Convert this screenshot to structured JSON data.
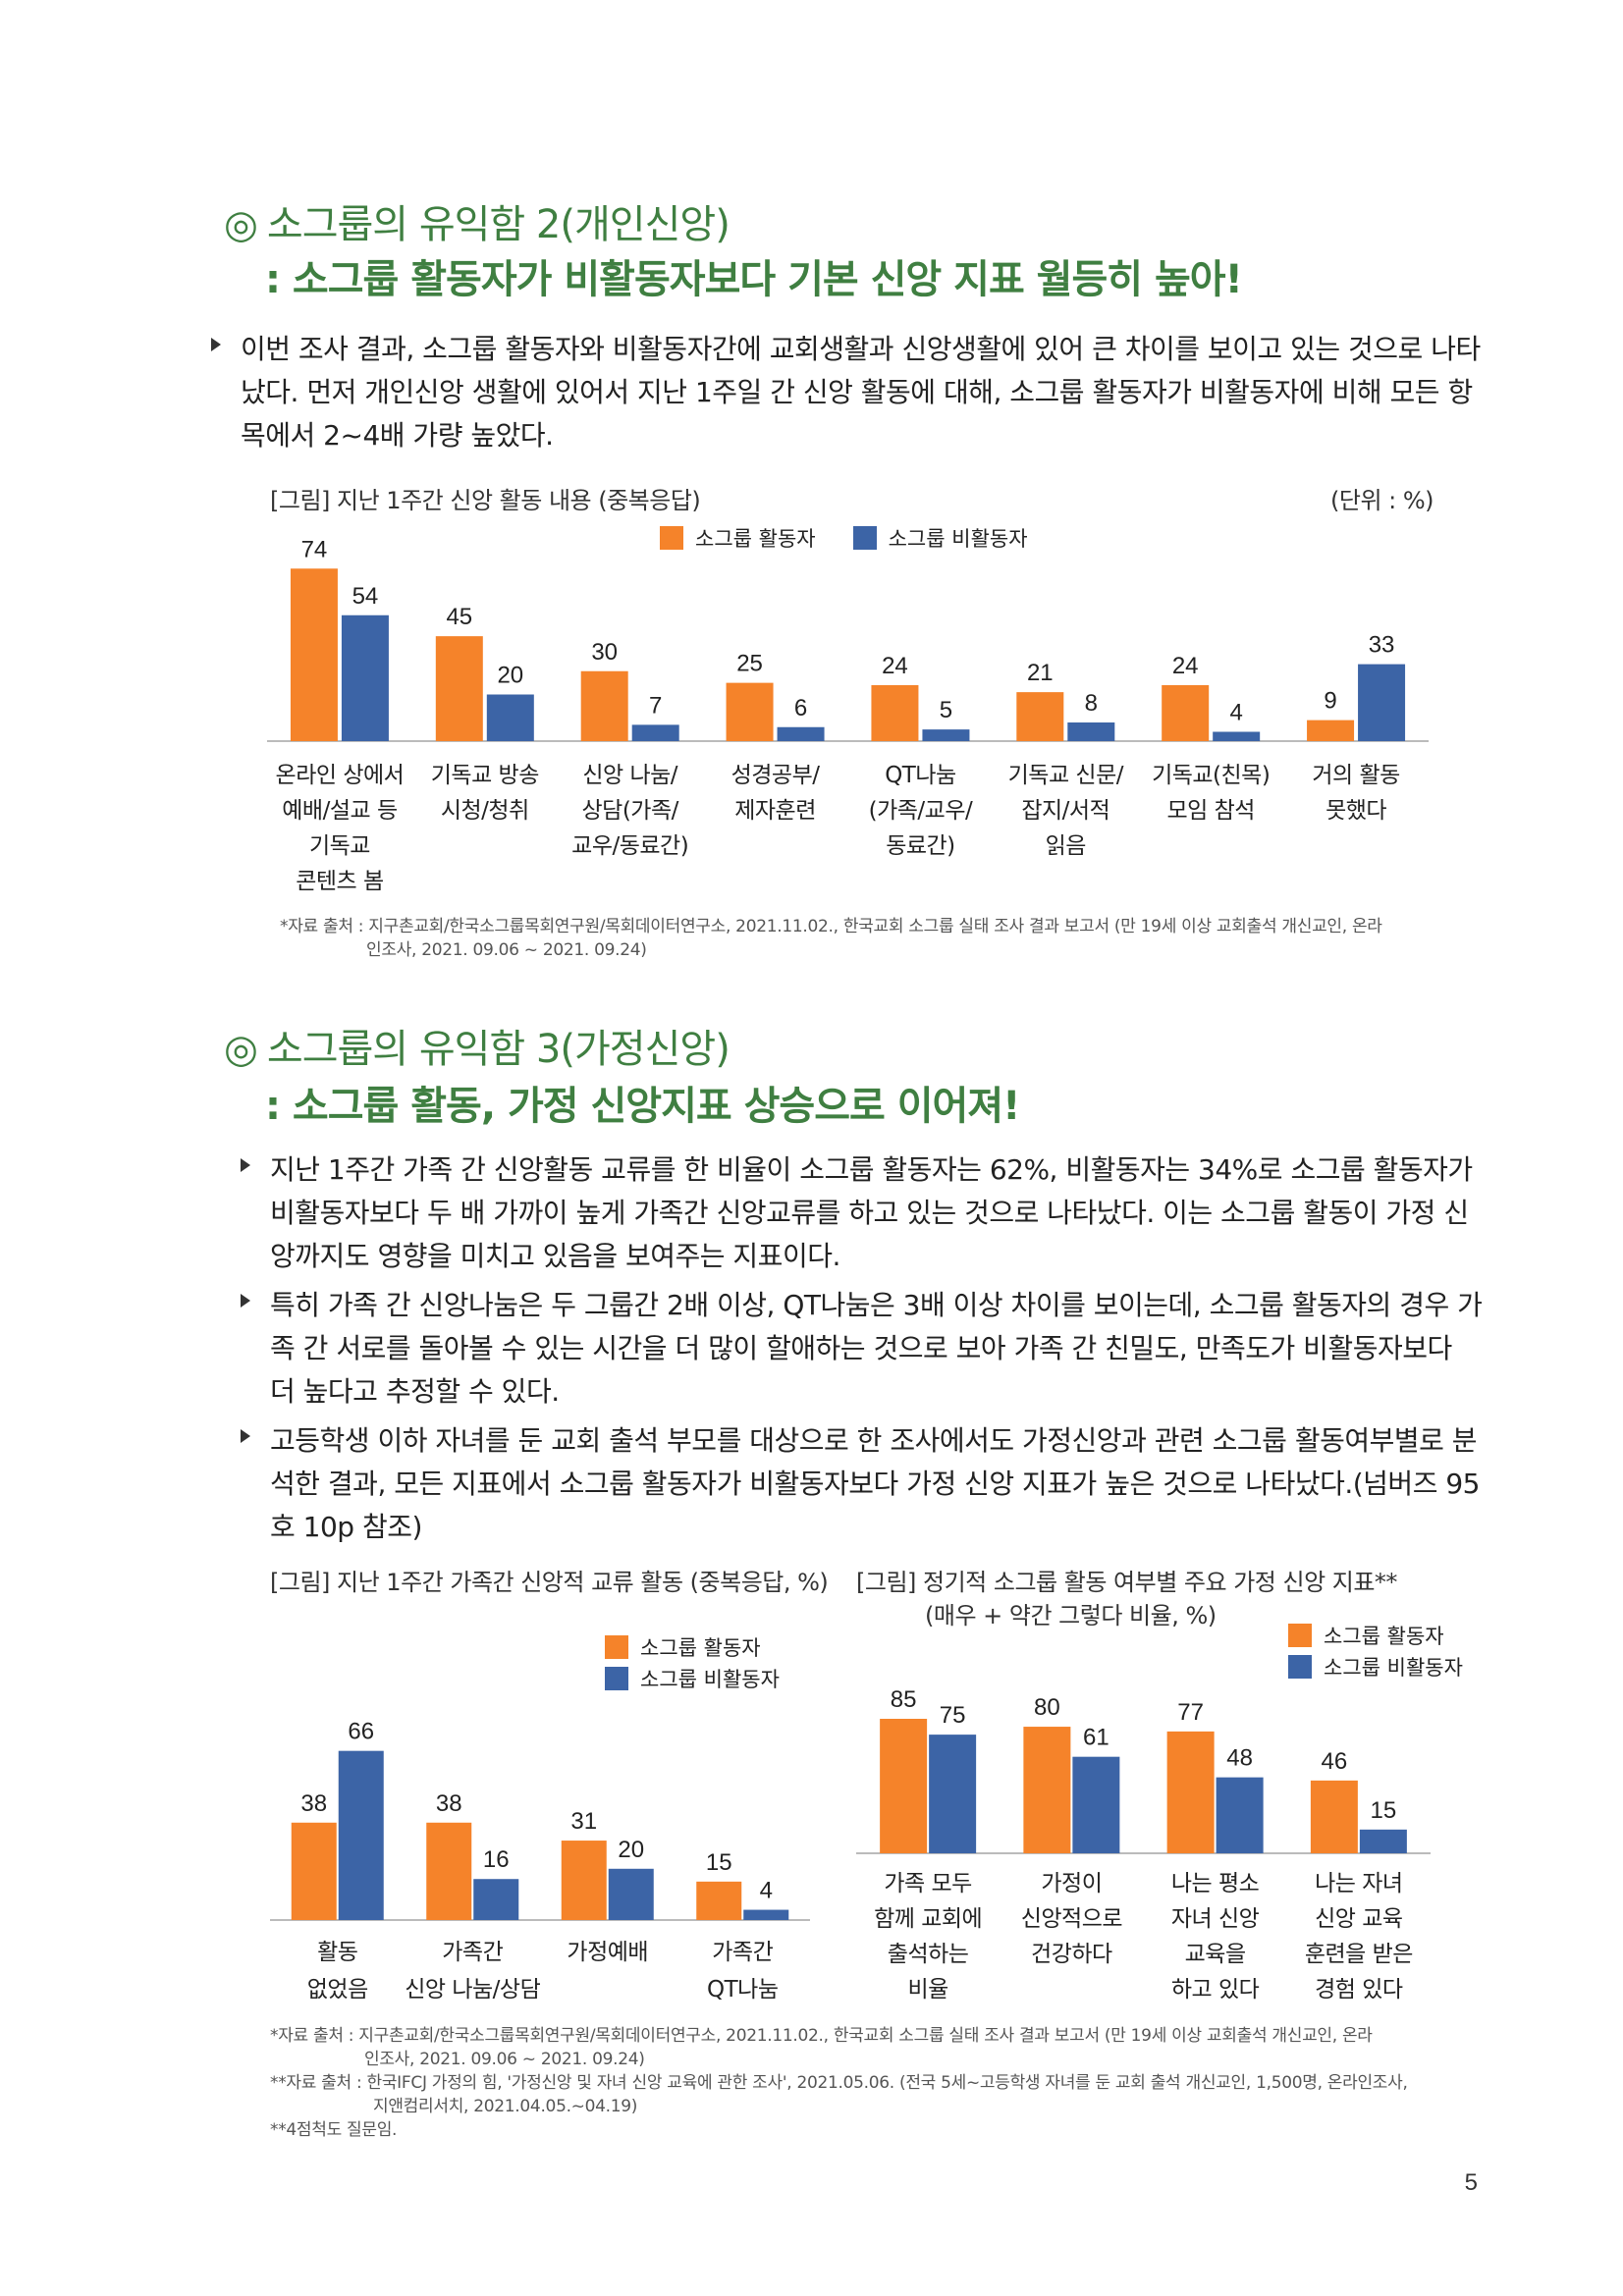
{
  "colors": {
    "active": "#f5832a",
    "inactive": "#3c64a6",
    "heading": "#3f7f41",
    "axis": "#bbbbbb"
  },
  "section1": {
    "heading_mark": "◎",
    "heading": "소그룹의 유익함 2(개인신앙)",
    "subheading": ": 소그룹 활동자가 비활동자보다 기본 신앙 지표 월등히 높아!",
    "paragraphs": [
      "이번 조사 결과, 소그룹 활동자와 비활동자간에 교회생활과 신앙생활에 있어 큰 차이를 보이고 있는 것으로 나타났다. 먼저 개인신앙 생활에 있어서 지난 1주일 간 신앙 활동에 대해, 소그룹 활동자가 비활동자에 비해 모든 항목에서 2~4배 가량 높았다."
    ],
    "figure_title": "[그림] 지난 1주간 신앙 활동 내용 (중복응답)",
    "unit": "(단위 : %)",
    "source_lines": [
      "*자료 출처 : 지구촌교회/한국소그룹목회연구원/목회데이터연구소, 2021.11.02., 한국교회 소그룹 실태 조사 결과 보고서 (만 19세 이상 교회출석 개신교인, 온라",
      "인조사, 2021. 09.06 ~ 2021. 09.24)"
    ]
  },
  "section2": {
    "heading_mark": "◎",
    "heading": "소그룹의 유익함 3(가정신앙)",
    "subheading": ": 소그룹 활동, 가정 신앙지표 상승으로 이어져!",
    "paragraphs": [
      "지난 1주간 가족 간 신앙활동 교류를 한 비율이 소그룹 활동자는 62%, 비활동자는 34%로 소그룹 활동자가 비활동자보다 두 배 가까이 높게 가족간 신앙교류를 하고 있는 것으로 나타났다. 이는 소그룹 활동이 가정 신앙까지도 영향을 미치고 있음을 보여주는 지표이다.",
      "특히 가족 간 신앙나눔은 두 그룹간 2배 이상, QT나눔은 3배 이상 차이를 보이는데, 소그룹 활동자의 경우 가족 간 서로를 돌아볼 수 있는 시간을 더 많이 할애하는 것으로 보아 가족 간 친밀도, 만족도가 비활동자보다 더 높다고 추정할 수 있다.",
      "고등학생 이하 자녀를 둔 교회 출석 부모를 대상으로 한 조사에서도 가정신앙과 관련 소그룹 활동여부별로 분석한 결과, 모든 지표에서 소그룹 활동자가 비활동자보다 가정 신앙 지표가 높은 것으로 나타났다.(넘버즈 95호 10p 참조)"
    ],
    "figure2_title": "[그림] 지난 1주간 가족간 신앙적 교류 활동 (중복응답, %)",
    "figure3_title": "[그림] 정기적 소그룹 활동 여부별 주요 가정 신앙 지표**",
    "figure3_subtitle": "(매우 + 약간 그렇다 비율, %)",
    "source_lines": [
      "*자료 출처 : 지구촌교회/한국소그룹목회연구원/목회데이터연구소, 2021.11.02., 한국교회 소그룹 실태 조사 결과 보고서 (만 19세 이상 교회출석 개신교인, 온라",
      "인조사, 2021. 09.06 ~ 2021. 09.24)",
      "**자료 출처 : 한국IFCJ 가정의 힘, '가정신앙 및 자녀 신앙 교육에 관한 조사', 2021.05.06. (전국 5세~고등학생 자녀를 둔 교회 출석 개신교인, 1,500명, 온라인조사,",
      "지앤컴리서치, 2021.04.05.~04.19)",
      "**4점척도 질문임."
    ]
  },
  "page_number": "5",
  "chart_data": [
    {
      "type": "bar",
      "title": "[그림] 지난 1주간 신앙 활동 내용 (중복응답)",
      "unit": "(단위 : %)",
      "legend_position": "top",
      "categories": [
        [
          "온라인 상에서",
          "예배/설교 등",
          "기독교",
          "콘텐츠 봄"
        ],
        [
          "기독교 방송",
          "시청/청취"
        ],
        [
          "신앙 나눔/",
          "상담(가족/",
          "교우/동료간)"
        ],
        [
          "성경공부/",
          "제자훈련"
        ],
        [
          "QT나눔",
          "(가족/교우/",
          "동료간)"
        ],
        [
          "기독교 신문/",
          "잡지/서적",
          "읽음"
        ],
        [
          "기독교(친목)",
          "모임 참석"
        ],
        [
          "거의 활동",
          "못했다"
        ]
      ],
      "series": [
        {
          "name": "소그룹 활동자",
          "values": [
            74,
            45,
            30,
            25,
            24,
            21,
            24,
            9
          ]
        },
        {
          "name": "소그룹 비활동자",
          "values": [
            54,
            20,
            7,
            6,
            5,
            8,
            4,
            33
          ]
        }
      ],
      "ylim": [
        0,
        80
      ]
    },
    {
      "type": "bar",
      "title": "[그림] 지난 1주간 가족간 신앙적 교류 활동 (중복응답, %)",
      "legend_position": "top-right",
      "categories": [
        [
          "활동",
          "없었음"
        ],
        [
          "가족간",
          "신앙 나눔/상담"
        ],
        [
          "가정예배"
        ],
        [
          "가족간",
          "QT나눔"
        ]
      ],
      "series": [
        {
          "name": "소그룹 활동자",
          "values": [
            38,
            38,
            31,
            15
          ]
        },
        {
          "name": "소그룹 비활동자",
          "values": [
            66,
            16,
            20,
            4
          ]
        }
      ],
      "ylim": [
        0,
        72
      ]
    },
    {
      "type": "bar",
      "title": "[그림] 정기적 소그룹 활동 여부별 주요 가정 신앙 지표**",
      "subtitle": "(매우 + 약간 그렇다 비율, %)",
      "legend_position": "top-right",
      "categories": [
        [
          "가족 모두",
          "함께 교회에",
          "출석하는",
          "비율"
        ],
        [
          "가정이",
          "신앙적으로",
          "건강하다"
        ],
        [
          "나는 평소",
          "자녀 신앙",
          "교육을",
          "하고 있다"
        ],
        [
          "나는 자녀",
          "신앙 교육",
          "훈련을 받은",
          "경험 있다"
        ]
      ],
      "series": [
        {
          "name": "소그룹 활동자",
          "values": [
            85,
            80,
            77,
            46
          ]
        },
        {
          "name": "소그룹 비활동자",
          "values": [
            75,
            61,
            48,
            15
          ]
        }
      ],
      "ylim": [
        0,
        85
      ]
    }
  ]
}
